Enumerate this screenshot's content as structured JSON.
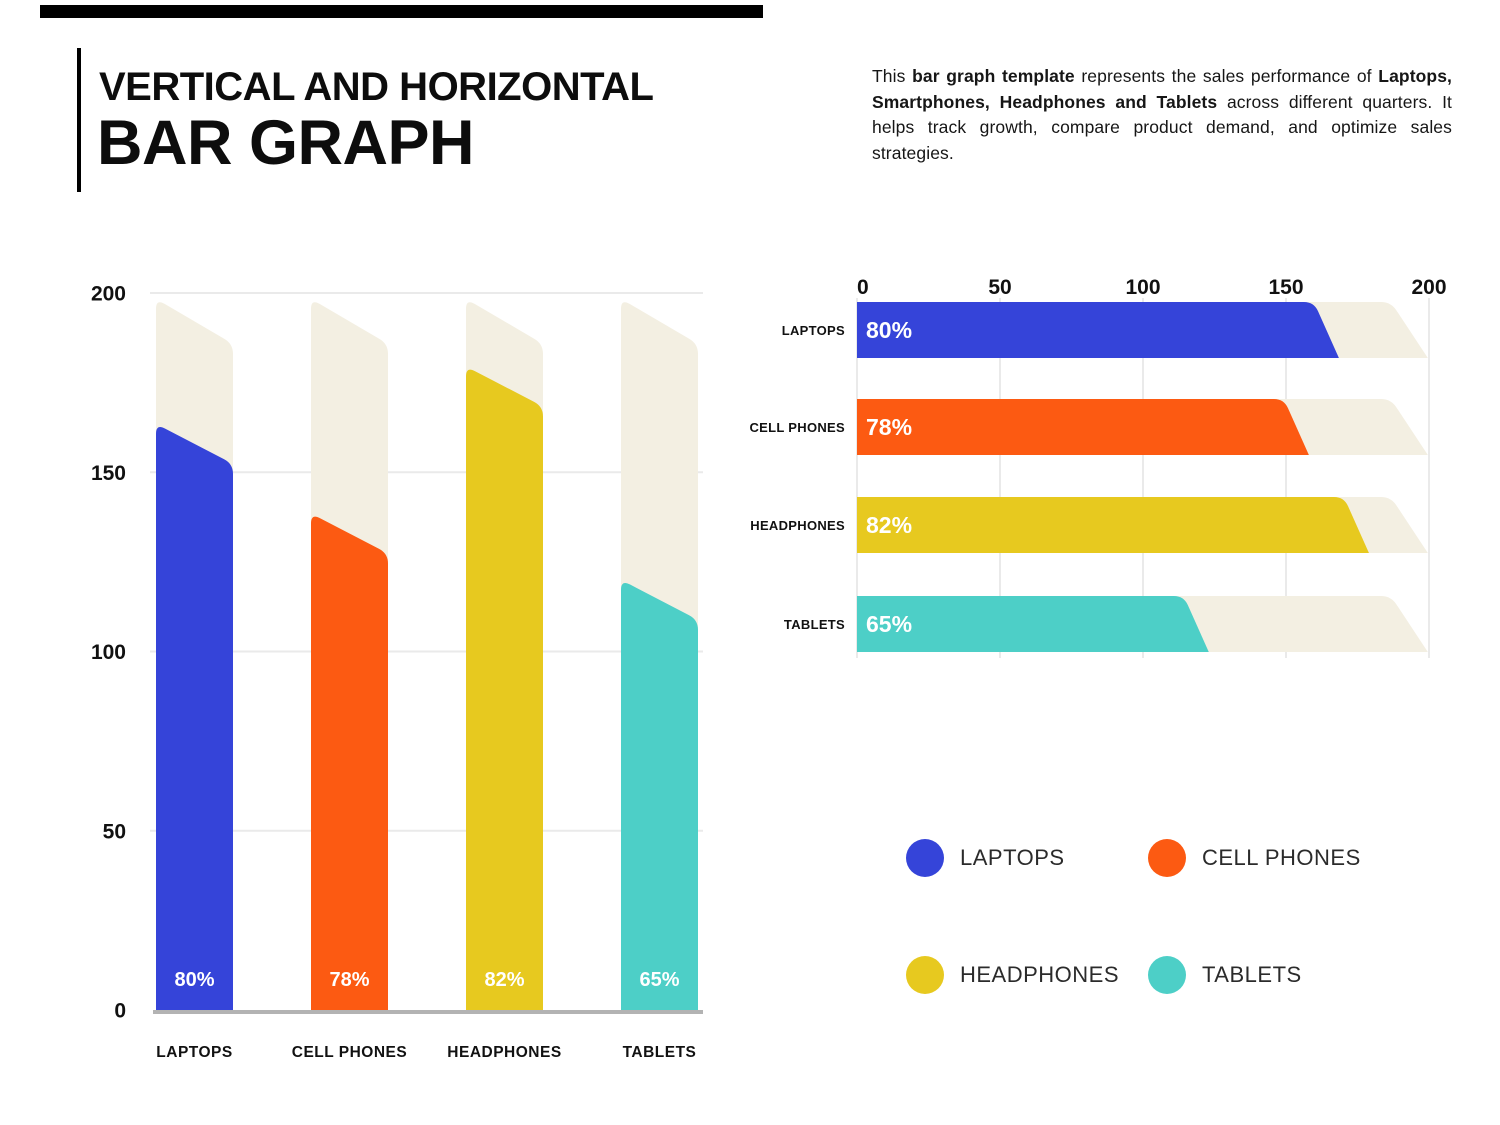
{
  "header": {
    "eyebrow": "VERTICAL AND HORIZONTAL",
    "title": "BAR GRAPH"
  },
  "description": {
    "segments": [
      {
        "text": "This ",
        "bold": false
      },
      {
        "text": "bar graph template",
        "bold": true
      },
      {
        "text": " represents the sales performance of ",
        "bold": false
      },
      {
        "text": "Laptops, Smartphones, Headphones and Tablets",
        "bold": true
      },
      {
        "text": " across different quarters. It helps track growth, compare product demand, and optimize sales strategies.",
        "bold": false
      }
    ]
  },
  "colors": {
    "blue": "#3544d9",
    "orange": "#fc5a12",
    "yellow": "#e7c91f",
    "teal": "#4dcfc7",
    "track_beige": "#f3efe2",
    "gridline": "#eaeaea",
    "baseline": "#b3b3b3",
    "tick_text": "#111111",
    "value_label_text": "#ffffff",
    "category_text": "#111111"
  },
  "chart_data": [
    {
      "id": "vertical-bar-chart",
      "type": "bar",
      "orientation": "vertical",
      "title": "",
      "categories": [
        "LAPTOPS",
        "CELL PHONES",
        "HEADPHONES",
        "TABLETS"
      ],
      "values_percent": [
        80,
        78,
        82,
        65
      ],
      "value_labels": [
        "80%",
        "78%",
        "82%",
        "65%"
      ],
      "bar_color_keys": [
        "blue",
        "orange",
        "yellow",
        "teal"
      ],
      "axis": {
        "min": 0,
        "max": 200,
        "ticks": [
          0,
          50,
          100,
          150,
          200
        ],
        "side": "left"
      },
      "tick_labels": [
        "0",
        "50",
        "100",
        "150",
        "200"
      ],
      "drawn_bar_tops_axis_units": [
        163.5,
        138.5,
        179.5,
        120
      ],
      "track_top_axis_units": 198.5,
      "grid": "horizontal-lines",
      "legend_position": "none"
    },
    {
      "id": "horizontal-bar-chart",
      "type": "bar",
      "orientation": "horizontal",
      "title": "",
      "categories": [
        "LAPTOPS",
        "CELL PHONES",
        "HEADPHONES",
        "TABLETS"
      ],
      "values_percent": [
        80,
        78,
        82,
        65
      ],
      "value_labels": [
        "80%",
        "78%",
        "82%",
        "65%"
      ],
      "bar_color_keys": [
        "blue",
        "orange",
        "yellow",
        "teal"
      ],
      "axis": {
        "min": 0,
        "max": 200,
        "ticks": [
          0,
          50,
          100,
          150,
          200
        ],
        "side": "top"
      },
      "tick_labels": [
        "0",
        "50",
        "100",
        "150",
        "200"
      ],
      "drawn_bar_ends_axis_units": [
        168.5,
        158,
        179,
        123
      ],
      "track_end_axis_units": 199.6,
      "grid": "vertical-lines",
      "legend_position": "below"
    }
  ],
  "legend": {
    "items": [
      {
        "label": "LAPTOPS",
        "color": "#3544d9"
      },
      {
        "label": "CELL PHONES",
        "color": "#fc5a12"
      },
      {
        "label": "HEADPHONES",
        "color": "#e7c91f"
      },
      {
        "label": "TABLETS",
        "color": "#4dcfc7"
      }
    ]
  }
}
